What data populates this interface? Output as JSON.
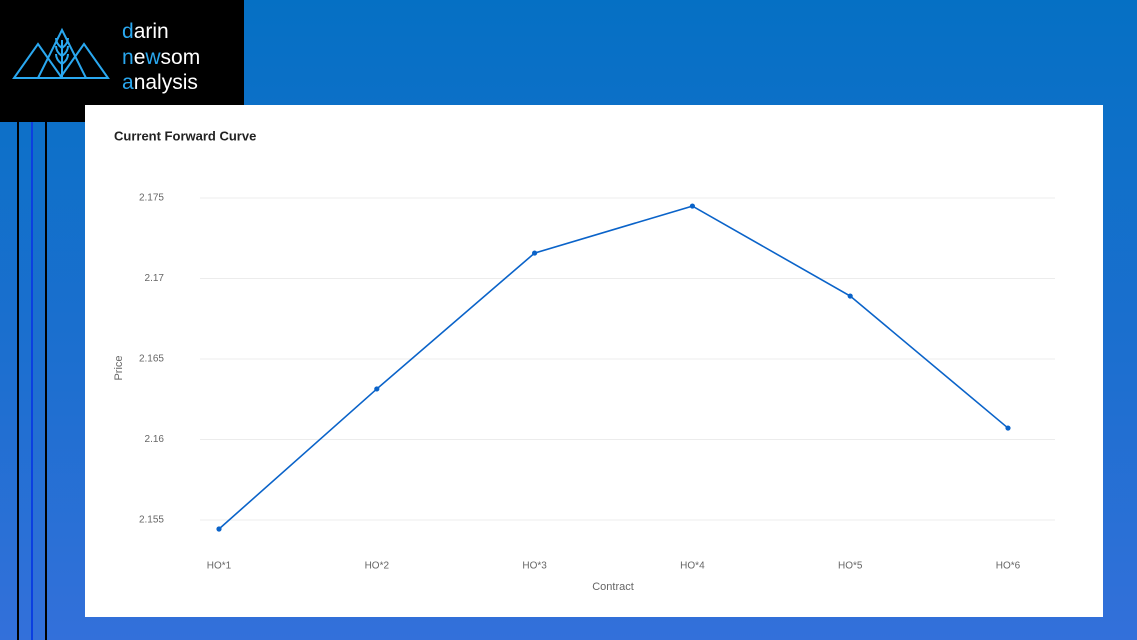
{
  "logo": {
    "lines": [
      [
        "d",
        "arin"
      ],
      [
        "n",
        "e",
        "w",
        "som"
      ],
      [
        "a",
        "nalysis"
      ]
    ]
  },
  "chart_data": {
    "type": "line",
    "title": "Current Forward Curve",
    "x_label": "Contract",
    "y_label": "Price",
    "categories": [
      "HO*1",
      "HO*2",
      "HO*3",
      "HO*4",
      "HO*5",
      "HO*6"
    ],
    "series": [
      {
        "name": "Price",
        "color": "#0a63c9",
        "values": [
          2.15444,
          2.16314,
          2.17158,
          2.1745,
          2.16891,
          2.16071
        ]
      }
    ],
    "ylim": [
      2.1538,
      2.1761
    ],
    "yticks": [
      2.155,
      2.16,
      2.165,
      2.17,
      2.175
    ],
    "grid": true
  }
}
